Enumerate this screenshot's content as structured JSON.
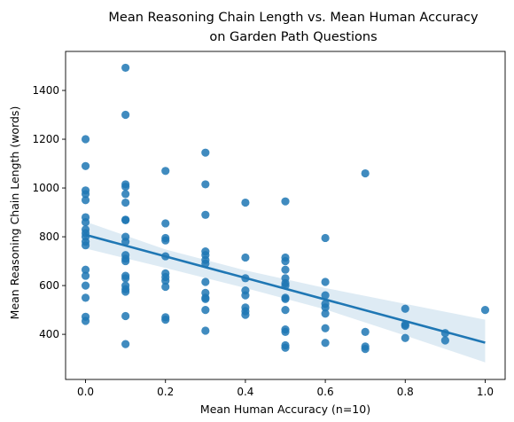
{
  "chart_data": {
    "type": "scatter",
    "title_lines": [
      "Mean Reasoning Chain Length vs. Mean Human Accuracy",
      "on Garden Path Questions"
    ],
    "xlabel": "Mean Human Accuracy (n=10)",
    "ylabel": "Mean Reasoning Chain Length (words)",
    "xlim": [
      -0.05,
      1.05
    ],
    "ylim": [
      215,
      1560
    ],
    "xticks": [
      0.0,
      0.2,
      0.4,
      0.6,
      0.8,
      1.0
    ],
    "xtick_labels": [
      "0.0",
      "0.2",
      "0.4",
      "0.6",
      "0.8",
      "1.0"
    ],
    "yticks": [
      400,
      600,
      800,
      1000,
      1200,
      1400
    ],
    "ytick_labels": [
      "400",
      "600",
      "800",
      "1000",
      "1200",
      "1400"
    ],
    "grid": false,
    "point_color": "#1f77b4",
    "regression": {
      "x_start": 0.0,
      "y_start": 808,
      "x_end": 1.0,
      "y_end": 366,
      "ci_upper": [
        [
          0.0,
          862
        ],
        [
          0.2,
          748
        ],
        [
          0.4,
          662
        ],
        [
          0.6,
          590
        ],
        [
          0.8,
          525
        ],
        [
          1.0,
          460
        ]
      ],
      "ci_lower": [
        [
          0.0,
          752
        ],
        [
          0.2,
          672
        ],
        [
          0.4,
          590
        ],
        [
          0.6,
          502
        ],
        [
          0.8,
          395
        ],
        [
          1.0,
          285
        ]
      ]
    },
    "points": [
      {
        "x": 0.0,
        "y": 1200
      },
      {
        "x": 0.0,
        "y": 1090
      },
      {
        "x": 0.0,
        "y": 990
      },
      {
        "x": 0.0,
        "y": 975
      },
      {
        "x": 0.0,
        "y": 950
      },
      {
        "x": 0.0,
        "y": 880
      },
      {
        "x": 0.0,
        "y": 860
      },
      {
        "x": 0.0,
        "y": 830
      },
      {
        "x": 0.0,
        "y": 815
      },
      {
        "x": 0.0,
        "y": 800
      },
      {
        "x": 0.0,
        "y": 780
      },
      {
        "x": 0.0,
        "y": 765
      },
      {
        "x": 0.0,
        "y": 665
      },
      {
        "x": 0.0,
        "y": 640
      },
      {
        "x": 0.0,
        "y": 600
      },
      {
        "x": 0.0,
        "y": 550
      },
      {
        "x": 0.0,
        "y": 472
      },
      {
        "x": 0.0,
        "y": 455
      },
      {
        "x": 0.1,
        "y": 1493
      },
      {
        "x": 0.1,
        "y": 1300
      },
      {
        "x": 0.1,
        "y": 1015
      },
      {
        "x": 0.1,
        "y": 1005
      },
      {
        "x": 0.1,
        "y": 975
      },
      {
        "x": 0.1,
        "y": 940
      },
      {
        "x": 0.1,
        "y": 870
      },
      {
        "x": 0.1,
        "y": 868
      },
      {
        "x": 0.1,
        "y": 800
      },
      {
        "x": 0.1,
        "y": 780
      },
      {
        "x": 0.1,
        "y": 725
      },
      {
        "x": 0.1,
        "y": 710
      },
      {
        "x": 0.1,
        "y": 700
      },
      {
        "x": 0.1,
        "y": 640
      },
      {
        "x": 0.1,
        "y": 630
      },
      {
        "x": 0.1,
        "y": 600
      },
      {
        "x": 0.1,
        "y": 585
      },
      {
        "x": 0.1,
        "y": 575
      },
      {
        "x": 0.1,
        "y": 475
      },
      {
        "x": 0.1,
        "y": 360
      },
      {
        "x": 0.2,
        "y": 1070
      },
      {
        "x": 0.2,
        "y": 855
      },
      {
        "x": 0.2,
        "y": 795
      },
      {
        "x": 0.2,
        "y": 785
      },
      {
        "x": 0.2,
        "y": 720
      },
      {
        "x": 0.2,
        "y": 650
      },
      {
        "x": 0.2,
        "y": 635
      },
      {
        "x": 0.2,
        "y": 620
      },
      {
        "x": 0.2,
        "y": 595
      },
      {
        "x": 0.2,
        "y": 470
      },
      {
        "x": 0.2,
        "y": 460
      },
      {
        "x": 0.3,
        "y": 1145
      },
      {
        "x": 0.3,
        "y": 1015
      },
      {
        "x": 0.3,
        "y": 890
      },
      {
        "x": 0.3,
        "y": 740
      },
      {
        "x": 0.3,
        "y": 725
      },
      {
        "x": 0.3,
        "y": 705
      },
      {
        "x": 0.3,
        "y": 690
      },
      {
        "x": 0.3,
        "y": 615
      },
      {
        "x": 0.3,
        "y": 570
      },
      {
        "x": 0.3,
        "y": 550
      },
      {
        "x": 0.3,
        "y": 545
      },
      {
        "x": 0.3,
        "y": 500
      },
      {
        "x": 0.3,
        "y": 415
      },
      {
        "x": 0.4,
        "y": 940
      },
      {
        "x": 0.4,
        "y": 715
      },
      {
        "x": 0.4,
        "y": 630
      },
      {
        "x": 0.4,
        "y": 580
      },
      {
        "x": 0.4,
        "y": 560
      },
      {
        "x": 0.4,
        "y": 510
      },
      {
        "x": 0.4,
        "y": 495
      },
      {
        "x": 0.4,
        "y": 480
      },
      {
        "x": 0.5,
        "y": 945
      },
      {
        "x": 0.5,
        "y": 715
      },
      {
        "x": 0.5,
        "y": 700
      },
      {
        "x": 0.5,
        "y": 665
      },
      {
        "x": 0.5,
        "y": 630
      },
      {
        "x": 0.5,
        "y": 610
      },
      {
        "x": 0.5,
        "y": 600
      },
      {
        "x": 0.5,
        "y": 550
      },
      {
        "x": 0.5,
        "y": 545
      },
      {
        "x": 0.5,
        "y": 500
      },
      {
        "x": 0.5,
        "y": 420
      },
      {
        "x": 0.5,
        "y": 410
      },
      {
        "x": 0.5,
        "y": 355
      },
      {
        "x": 0.5,
        "y": 345
      },
      {
        "x": 0.6,
        "y": 795
      },
      {
        "x": 0.6,
        "y": 615
      },
      {
        "x": 0.6,
        "y": 560
      },
      {
        "x": 0.6,
        "y": 525
      },
      {
        "x": 0.6,
        "y": 510
      },
      {
        "x": 0.6,
        "y": 485
      },
      {
        "x": 0.6,
        "y": 425
      },
      {
        "x": 0.6,
        "y": 365
      },
      {
        "x": 0.7,
        "y": 1060
      },
      {
        "x": 0.7,
        "y": 410
      },
      {
        "x": 0.7,
        "y": 350
      },
      {
        "x": 0.7,
        "y": 340
      },
      {
        "x": 0.8,
        "y": 505
      },
      {
        "x": 0.8,
        "y": 440
      },
      {
        "x": 0.8,
        "y": 435
      },
      {
        "x": 0.8,
        "y": 385
      },
      {
        "x": 0.9,
        "y": 405
      },
      {
        "x": 0.9,
        "y": 375
      },
      {
        "x": 1.0,
        "y": 500
      }
    ]
  }
}
